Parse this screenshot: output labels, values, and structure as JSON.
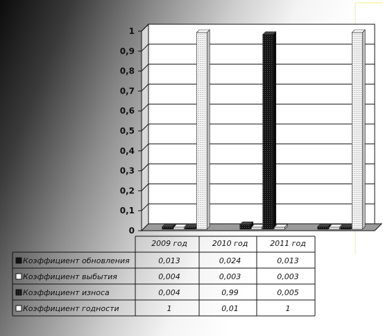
{
  "chart_data": {
    "type": "bar",
    "categories": [
      "2009 год",
      "2010 год",
      "2011 год"
    ],
    "series": [
      {
        "name": "Коэффициент обновления",
        "values": [
          0.013,
          0.024,
          0.013
        ],
        "color": "#111111"
      },
      {
        "name": "Коэффициент выбытия",
        "values": [
          0.004,
          0.003,
          0.003
        ],
        "color": "#e8e8e8"
      },
      {
        "name": "Коэффициент износа",
        "values": [
          0.004,
          0.99,
          0.005
        ],
        "color": "#1c1c1c"
      },
      {
        "name": "Коэффициент годности",
        "values": [
          1,
          0.01,
          1
        ],
        "color": "#f2f2f2"
      }
    ],
    "table_values": [
      [
        "0,013",
        "0,024",
        "0,013"
      ],
      [
        "0,004",
        "0,003",
        "0,003"
      ],
      [
        "0,004",
        "0,99",
        "0,005"
      ],
      [
        "1",
        "0,01",
        "1"
      ]
    ],
    "y_ticks": [
      "0",
      "0,1",
      "0,2",
      "0,3",
      "0,4",
      "0,5",
      "0,6",
      "0,7",
      "0,8",
      "0,9",
      "1"
    ],
    "ylim": [
      0,
      1
    ],
    "grid": true,
    "legend": "data-table-below"
  }
}
